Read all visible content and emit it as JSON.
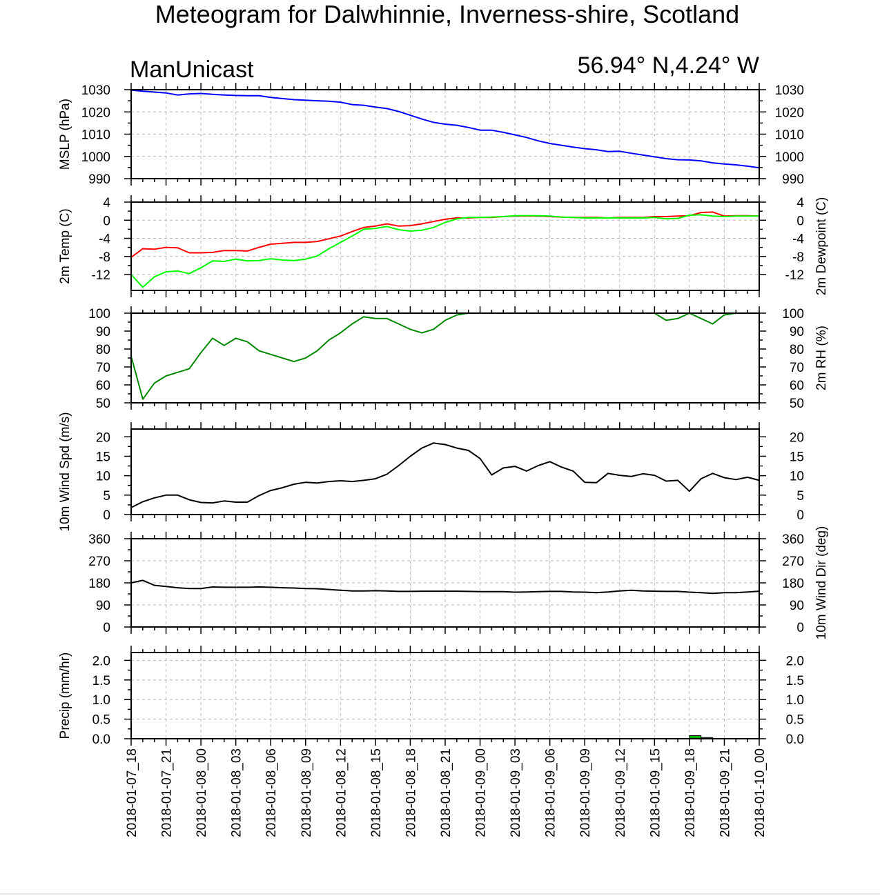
{
  "title": "Meteogram for Dalwhinnie, Inverness-shire, Scotland",
  "model": "ManUnicast",
  "location": "56.94° N,4.24° W",
  "chart_data": {
    "type": "line",
    "x_tick_labels": [
      "2018-01-07_18",
      "2018-01-07_21",
      "2018-01-08_00",
      "2018-01-08_03",
      "2018-01-08_06",
      "2018-01-08_09",
      "2018-01-08_12",
      "2018-01-08_15",
      "2018-01-08_18",
      "2018-01-08_21",
      "2018-01-09_00",
      "2018-01-09_03",
      "2018-01-09_06",
      "2018-01-09_09",
      "2018-01-09_12",
      "2018-01-09_15",
      "2018-01-09_18",
      "2018-01-09_21",
      "2018-01-10_00"
    ],
    "x_hours": [
      0,
      1,
      2,
      3,
      4,
      5,
      6,
      7,
      8,
      9,
      10,
      11,
      12,
      13,
      14,
      15,
      16,
      17,
      18,
      19,
      20,
      21,
      22,
      23,
      24,
      25,
      26,
      27,
      28,
      29,
      30,
      31,
      32,
      33,
      34,
      35,
      36,
      37,
      38,
      39,
      40,
      41,
      42,
      43,
      44,
      45,
      46,
      47,
      48,
      49,
      50,
      51,
      52,
      53,
      54
    ],
    "panels": [
      {
        "id": "mslp",
        "ylabel": "MSLP (hPa)",
        "ylabel_right": "",
        "ylim": [
          990,
          1030
        ],
        "yticks": [
          990,
          1000,
          1010,
          1020,
          1030
        ],
        "grid": true,
        "series": [
          {
            "color": "#0000ff",
            "values": [
              1029.8,
              1029.3,
              1028.9,
              1028.5,
              1027.6,
              1028.1,
              1028.3,
              1027.9,
              1027.6,
              1027.4,
              1027.3,
              1027.3,
              1026.5,
              1026.0,
              1025.5,
              1025.3,
              1025.0,
              1024.8,
              1024.4,
              1023.3,
              1023.0,
              1022.2,
              1021.5,
              1020.2,
              1018.5,
              1016.8,
              1015.3,
              1014.5,
              1014.0,
              1013.0,
              1011.8,
              1011.8,
              1010.8,
              1009.7,
              1008.5,
              1007.0,
              1005.8,
              1005.0,
              1004.2,
              1003.5,
              1003.0,
              1002.2,
              1002.3,
              1001.4,
              1000.6,
              999.8,
              999.0,
              998.5,
              998.4,
              998.0,
              997.1,
              996.6,
              996.2,
              995.6,
              994.9
            ]
          }
        ]
      },
      {
        "id": "temp",
        "ylabel": "2m Temp (C)",
        "ylabel_right": "2m Dewpoint (C)",
        "ylim": [
          -15.5,
          4
        ],
        "yticks": [
          -12,
          -8,
          -4,
          0,
          4
        ],
        "grid": true,
        "series": [
          {
            "color": "#ff0000",
            "values": [
              -8.2,
              -6.3,
              -6.4,
              -6.0,
              -6.1,
              -7.2,
              -7.2,
              -7.1,
              -6.7,
              -6.7,
              -6.8,
              -6.0,
              -5.3,
              -5.1,
              -4.9,
              -4.9,
              -4.7,
              -4.1,
              -3.5,
              -2.5,
              -1.6,
              -1.3,
              -0.8,
              -1.3,
              -1.2,
              -0.8,
              -0.3,
              0.2,
              0.5,
              0.5,
              0.6,
              0.6,
              0.8,
              0.9,
              0.9,
              0.9,
              0.8,
              0.7,
              0.6,
              0.6,
              0.6,
              0.5,
              0.6,
              0.6,
              0.6,
              0.8,
              0.8,
              0.9,
              1.0,
              1.7,
              1.8,
              0.9,
              1.0,
              1.0,
              0.9
            ]
          },
          {
            "color": "#00ff00",
            "values": [
              -12.0,
              -14.8,
              -12.5,
              -11.4,
              -11.2,
              -11.8,
              -10.5,
              -9.0,
              -9.1,
              -8.6,
              -9.0,
              -8.9,
              -8.5,
              -8.8,
              -8.9,
              -8.6,
              -7.9,
              -6.3,
              -4.9,
              -3.5,
              -2.0,
              -1.8,
              -1.4,
              -2.1,
              -2.4,
              -2.2,
              -1.6,
              -0.5,
              0.3,
              0.6,
              0.6,
              0.7,
              0.8,
              1.0,
              1.0,
              1.0,
              0.9,
              0.7,
              0.6,
              0.5,
              0.5,
              0.5,
              0.5,
              0.5,
              0.5,
              0.6,
              0.3,
              0.4,
              1.1,
              1.2,
              0.9,
              0.8,
              0.9,
              0.9,
              0.9
            ]
          }
        ]
      },
      {
        "id": "rh",
        "ylabel": "",
        "ylabel_right": "2m RH (%)",
        "ylim": [
          50,
          100
        ],
        "yticks": [
          50,
          60,
          70,
          80,
          90,
          100
        ],
        "grid": false,
        "series": [
          {
            "color": "#008800",
            "values": [
              76,
              52,
              61,
              65,
              67,
              69,
              78,
              86,
              82,
              86,
              84,
              79,
              77,
              75,
              73,
              75,
              79,
              85,
              89,
              94,
              98,
              97,
              97,
              94,
              91,
              89,
              91,
              96,
              99,
              100,
              100,
              100,
              100,
              100,
              100,
              100,
              100,
              100,
              100,
              100,
              100,
              100,
              100,
              100,
              100,
              100,
              96,
              97,
              100,
              97,
              94,
              99,
              100,
              100,
              100
            ]
          }
        ]
      },
      {
        "id": "wspd",
        "ylabel": "10m Wind Spd (m/s)",
        "ylabel_right": "",
        "ylim": [
          0,
          22
        ],
        "yticks": [
          0,
          5,
          10,
          15,
          20
        ],
        "grid": false,
        "series": [
          {
            "color": "#000000",
            "values": [
              1.8,
              3.3,
              4.3,
              5.0,
              5.0,
              3.8,
              3.1,
              3.0,
              3.5,
              3.2,
              3.2,
              4.9,
              6.2,
              6.9,
              7.8,
              8.3,
              8.1,
              8.5,
              8.7,
              8.5,
              8.8,
              9.2,
              10.4,
              12.6,
              15.0,
              17.1,
              18.4,
              18.0,
              17.1,
              16.5,
              14.4,
              10.2,
              12.0,
              12.4,
              11.2,
              12.6,
              13.6,
              12.2,
              11.2,
              8.3,
              8.2,
              10.6,
              10.1,
              9.8,
              10.5,
              10.1,
              8.6,
              8.8,
              6.0,
              9.2,
              10.6,
              9.5,
              9.0,
              9.6,
              8.8
            ]
          }
        ]
      },
      {
        "id": "wdir",
        "ylabel": "",
        "ylabel_right": "10m Wind Dir (deg)",
        "ylim": [
          0,
          360
        ],
        "yticks": [
          0,
          90,
          180,
          270,
          360
        ],
        "grid": true,
        "series": [
          {
            "color": "#000000",
            "values": [
              180,
              190,
              170,
              165,
              160,
              157,
              157,
              163,
              162,
              162,
              162,
              163,
              162,
              160,
              159,
              157,
              156,
              153,
              150,
              147,
              147,
              148,
              147,
              145,
              145,
              146,
              146,
              146,
              146,
              145,
              144,
              144,
              144,
              142,
              143,
              144,
              145,
              145,
              143,
              142,
              140,
              143,
              147,
              150,
              147,
              146,
              145,
              145,
              142,
              140,
              137,
              140,
              140,
              143,
              146
            ]
          }
        ]
      },
      {
        "id": "precip",
        "ylabel": "Precip (mm/hr)",
        "ylabel_right": "",
        "ylim": [
          0,
          2.2
        ],
        "yticks": [
          0.0,
          0.5,
          1.0,
          1.5,
          2.0
        ],
        "ytick_labels": [
          "0.0",
          "0.5",
          "1.0",
          "1.5",
          "2.0"
        ],
        "grid": true,
        "bars": {
          "color": "#00aa00",
          "values": [
            0,
            0,
            0,
            0,
            0,
            0,
            0,
            0,
            0,
            0,
            0,
            0,
            0,
            0,
            0,
            0,
            0,
            0,
            0,
            0,
            0,
            0,
            0,
            0,
            0,
            0,
            0,
            0,
            0.01,
            0.01,
            0,
            0,
            0,
            0.01,
            0.01,
            0.01,
            0,
            0,
            0,
            0,
            0,
            0,
            0,
            0,
            0,
            0,
            0,
            0,
            0.08,
            0.03,
            0,
            0,
            0,
            0,
            0
          ]
        }
      }
    ]
  }
}
